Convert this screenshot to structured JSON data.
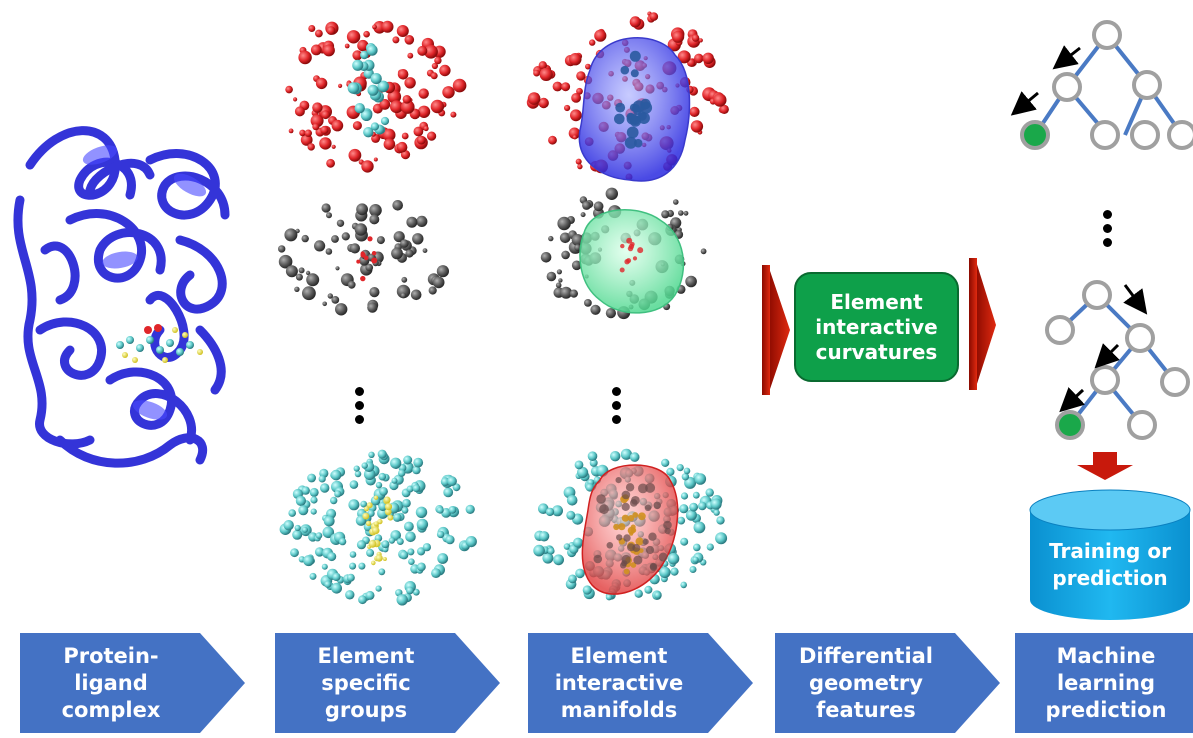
{
  "steps": [
    {
      "label": "Protein-\nligand\ncomplex"
    },
    {
      "label": "Element\nspecific\ngroups"
    },
    {
      "label": "Element\ninteractive\nmanifolds"
    },
    {
      "label": "Differential\ngeometry\nfeatures"
    },
    {
      "label": "Machine\nlearning\nprediction"
    }
  ],
  "curvature_box": {
    "label": "Element\ninteractive\ncurvatures"
  },
  "database": {
    "label": "Training or\nprediction"
  },
  "colors": {
    "chevron": "#4472c4",
    "protein": "#2a2ad6",
    "oxygen_red": "#e0262a",
    "carbon_gray": "#5a5a5a",
    "cyan_atom": "#5cc8c8",
    "yellow_atom": "#f0e040",
    "curvature_box": "#0ea04a",
    "red_arrow": "#c8190c",
    "tree_edge": "#4a7ac4",
    "tree_node": "#a0a0a0",
    "leaf_green": "#1aa84a",
    "database": "#1aaee8"
  },
  "icons": [
    "ellipsis-vertical-icon",
    "tree-icon",
    "database-icon",
    "down-arrow-icon",
    "right-arrow-icon"
  ]
}
